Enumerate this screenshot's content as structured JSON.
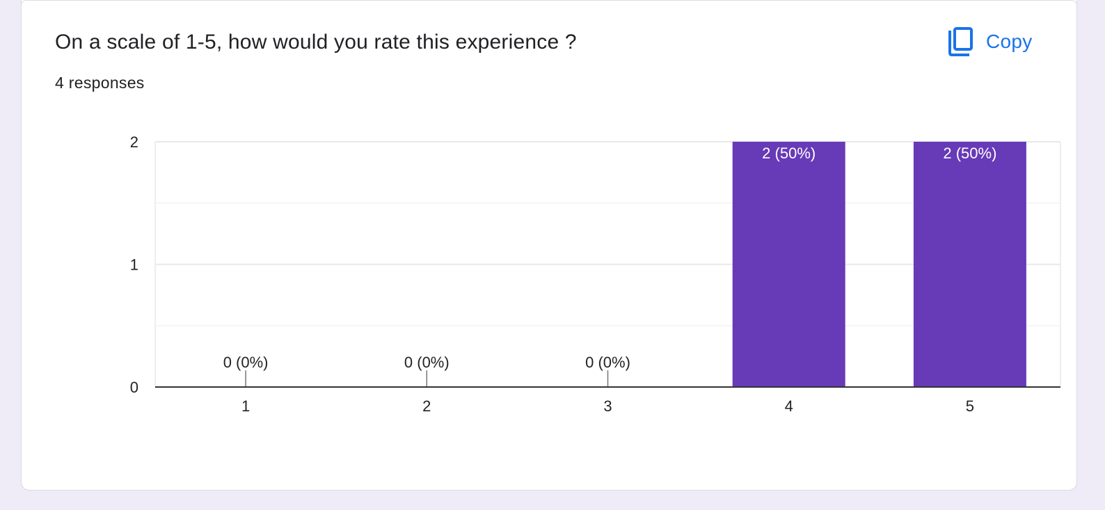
{
  "question": {
    "title": "On a scale of 1-5, how would you rate this experience ?",
    "responses_label": "4 responses",
    "copy_label": "Copy",
    "copy_icon": "copy-icon"
  },
  "colors": {
    "bar": "#673ab7",
    "accent": "#1a73e8",
    "grid": "#e8e8e8",
    "axis": "#333333",
    "page_background": "#efebf7"
  },
  "chart_data": {
    "type": "bar",
    "categories": [
      "1",
      "2",
      "3",
      "4",
      "5"
    ],
    "values": [
      0,
      0,
      0,
      2,
      2
    ],
    "data_labels": [
      "0 (0%)",
      "0 (0%)",
      "0 (0%)",
      "2 (50%)",
      "2 (50%)"
    ],
    "y_ticks": [
      0,
      1,
      2
    ],
    "ylim": [
      0,
      2
    ],
    "title": "",
    "xlabel": "",
    "ylabel": "",
    "grid": true,
    "legend": "none"
  }
}
